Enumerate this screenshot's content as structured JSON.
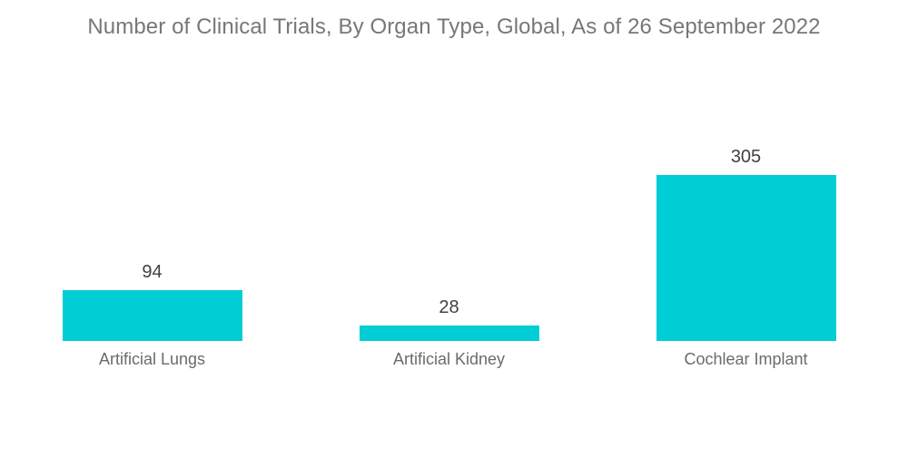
{
  "chart_data": {
    "type": "bar",
    "title": "Number of Clinical Trials, By Organ Type, Global, As of 26 September 2022",
    "categories": [
      "Artificial Lungs",
      "Artificial Kidney",
      "Cochlear Implant"
    ],
    "values": [
      94,
      28,
      305
    ],
    "xlabel": "",
    "ylabel": "",
    "ylim": [
      0,
      330
    ],
    "grid": false,
    "legend": "none",
    "axes_shown": false,
    "value_labels_position": "above-bar"
  },
  "colors": {
    "bar": "#00cdd4",
    "title_text": "#75787b",
    "value_text": "#414141",
    "category_text": "#6b6b6b",
    "background": "#ffffff"
  }
}
